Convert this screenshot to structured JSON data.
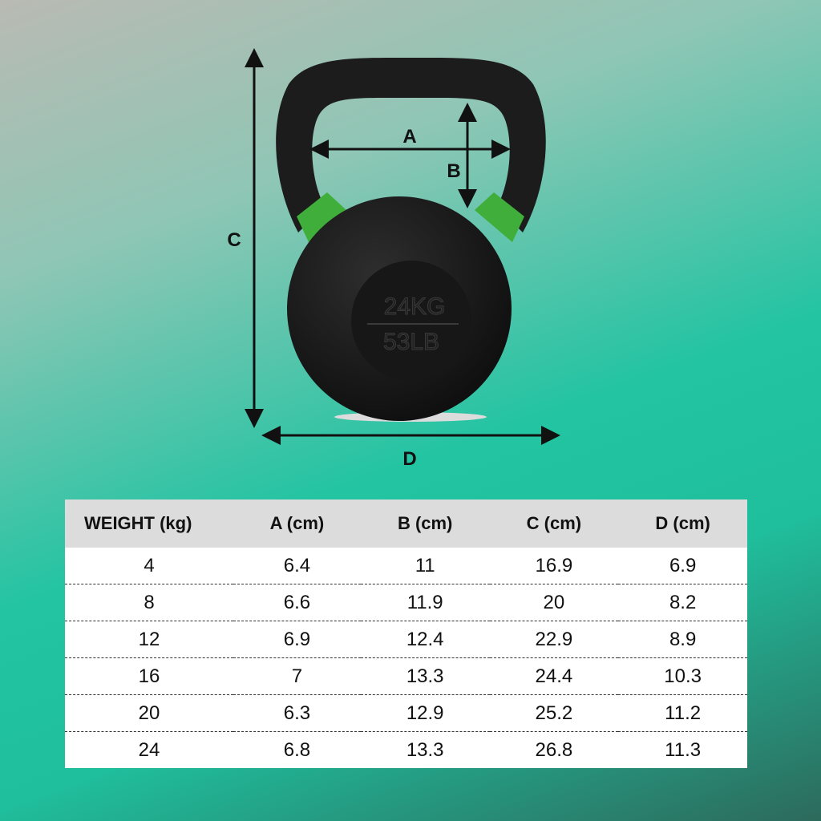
{
  "diagram": {
    "labels": {
      "a": "A",
      "b": "B",
      "c": "C",
      "d": "D"
    },
    "emboss": {
      "kg": "24KG",
      "lb": "53LB"
    },
    "colors": {
      "body": "#1a1a1a",
      "band": "#3fae3a",
      "arrow": "#111111"
    }
  },
  "table": {
    "headers": [
      "WEIGHT (kg)",
      "A (cm)",
      "B (cm)",
      "C (cm)",
      "D (cm)"
    ],
    "rows": [
      [
        "4",
        "6.4",
        "11",
        "16.9",
        "6.9"
      ],
      [
        "8",
        "6.6",
        "11.9",
        "20",
        "8.2"
      ],
      [
        "12",
        "6.9",
        "12.4",
        "22.9",
        "8.9"
      ],
      [
        "16",
        "7",
        "13.3",
        "24.4",
        "10.3"
      ],
      [
        "20",
        "6.3",
        "12.9",
        "25.2",
        "11.2"
      ],
      [
        "24",
        "6.8",
        "13.3",
        "26.8",
        "11.3"
      ]
    ]
  }
}
